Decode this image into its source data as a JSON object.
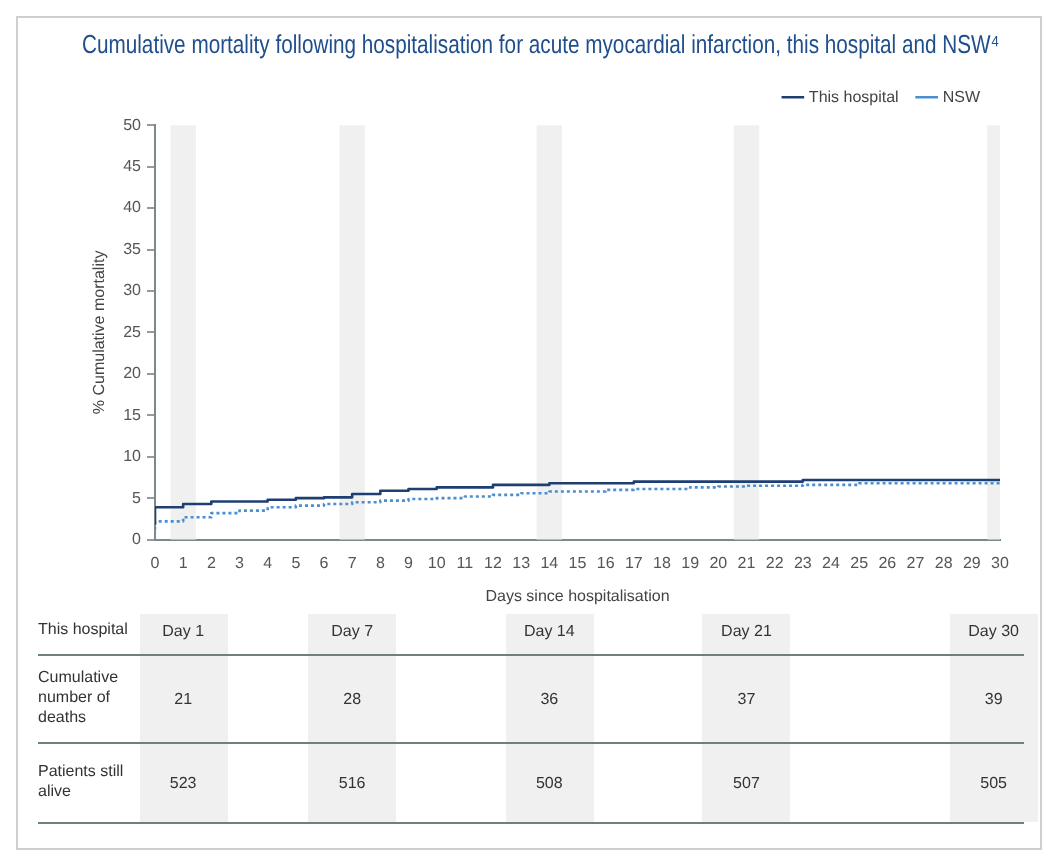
{
  "chart_data": {
    "type": "step",
    "title": "Cumulative mortality following hospitalisation for acute myocardial infarction, this hospital and NSW⁴",
    "xlabel": "Days since hospitalisation",
    "ylabel": "% Cumulative mortality",
    "xlim": [
      0,
      30
    ],
    "xticks": [
      0,
      1,
      2,
      3,
      4,
      5,
      6,
      7,
      8,
      9,
      10,
      11,
      12,
      13,
      14,
      15,
      16,
      17,
      18,
      19,
      20,
      21,
      22,
      23,
      24,
      25,
      26,
      27,
      28,
      29,
      30
    ],
    "ylim": [
      0,
      50
    ],
    "yticks": [
      0,
      5,
      10,
      15,
      20,
      25,
      30,
      35,
      40,
      45,
      50
    ],
    "legend": "top right",
    "grid": false,
    "series": [
      {
        "name": "This hospital",
        "color": "#1f3f73",
        "line_style": "solid",
        "x": [
          0,
          1,
          2,
          4,
          5,
          6,
          7,
          8,
          9,
          10,
          12,
          14,
          17,
          23,
          25,
          30
        ],
        "values": [
          1.8,
          3.9,
          4.3,
          4.6,
          4.8,
          5.0,
          5.1,
          5.5,
          5.9,
          6.1,
          6.3,
          6.6,
          6.8,
          7.0,
          7.2,
          7.2
        ]
      },
      {
        "name": "NSW",
        "color": "#4a8fd0",
        "line_style": "dotted",
        "x": [
          0,
          1,
          2,
          3,
          4,
          5,
          6,
          7,
          8,
          9,
          10,
          11,
          12,
          13,
          14,
          16,
          17,
          19,
          20,
          21,
          23,
          25,
          28,
          30
        ],
        "values": [
          1.2,
          2.2,
          2.7,
          3.2,
          3.5,
          3.9,
          4.1,
          4.3,
          4.5,
          4.7,
          4.9,
          5.0,
          5.2,
          5.4,
          5.6,
          5.8,
          6.0,
          6.1,
          6.3,
          6.4,
          6.5,
          6.6,
          6.8,
          6.8
        ]
      }
    ],
    "bands": [
      {
        "axis": "x",
        "from": 0.55,
        "to": 1.45,
        "color": "#f0f0f0"
      },
      {
        "axis": "x",
        "from": 6.55,
        "to": 7.45,
        "color": "#f0f0f0"
      },
      {
        "axis": "x",
        "from": 13.55,
        "to": 14.45,
        "color": "#f0f0f0"
      },
      {
        "axis": "x",
        "from": 20.55,
        "to": 21.45,
        "color": "#f0f0f0"
      },
      {
        "axis": "x",
        "from": 29.55,
        "to": 30,
        "color": "#f0f0f0"
      }
    ],
    "annotations": [
      "This hospital",
      "Day 1",
      "Day 7",
      "Day 14",
      "Day 21",
      "Day 30",
      "Cumulative number of deaths",
      "21",
      "28",
      "36",
      "37",
      "39",
      "Patients still alive",
      "523",
      "516",
      "508",
      "507",
      "505"
    ]
  }
}
